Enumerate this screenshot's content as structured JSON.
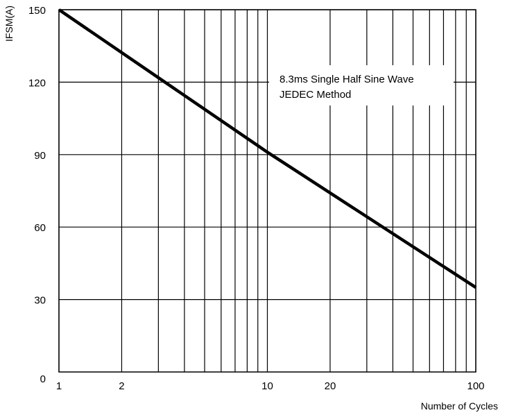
{
  "chart_data": {
    "type": "line",
    "title": "",
    "xlabel": "Number of Cycles",
    "ylabel": "IFSM(A)",
    "x_scale": "log",
    "xlim": [
      1,
      100
    ],
    "ylim": [
      0,
      150
    ],
    "x_ticks": [
      1,
      2,
      10,
      20,
      100
    ],
    "x_tick_labels": [
      "1",
      "2",
      "10",
      "20",
      "100"
    ],
    "y_ticks": [
      0,
      30,
      60,
      90,
      120,
      150
    ],
    "y_tick_labels": [
      "0",
      "30",
      "60",
      "90",
      "120",
      "150"
    ],
    "x_gridlines": [
      1,
      2,
      3,
      4,
      5,
      6,
      7,
      8,
      9,
      10,
      20,
      30,
      40,
      50,
      60,
      70,
      80,
      90,
      100
    ],
    "y_gridlines": [
      30,
      60,
      90,
      120,
      150
    ],
    "grid": true,
    "annotation": {
      "lines": [
        "8.3ms Single Half Sine Wave",
        "JEDEC Method"
      ]
    },
    "series": [
      {
        "x": [
          1,
          10,
          100
        ],
        "y": [
          150,
          91,
          35
        ],
        "color": "#000000"
      }
    ]
  }
}
